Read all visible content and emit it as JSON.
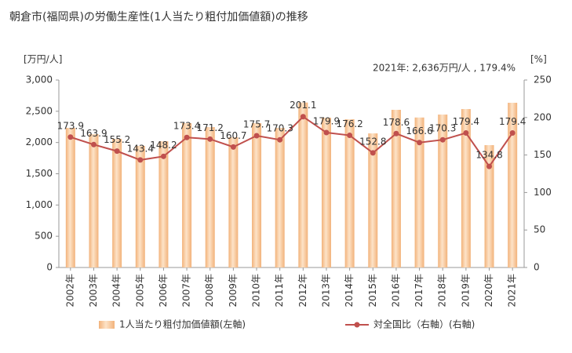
{
  "chart_data": {
    "type": "bar_line",
    "title": "朝倉市(福岡県)の労働生産性(1人当たり粗付加価値額)の推移",
    "y_unit": "[万円/人]",
    "y2_unit": "[%]",
    "annotation": "2021年: 2,636万円/人 , 179.4%",
    "categories": [
      "2002年",
      "2003年",
      "2004年",
      "2005年",
      "2006年",
      "2007年",
      "2008年",
      "2009年",
      "2010年",
      "2011年",
      "2012年",
      "2013年",
      "2014年",
      "2015年",
      "2016年",
      "2017年",
      "2018年",
      "2019年",
      "2020年",
      "2021年"
    ],
    "series": [
      {
        "name": "1人当たり粗付加価値額(左軸)",
        "type": "bar",
        "color": "#f2b27a",
        "values": [
          2234,
          2134,
          2058,
          1946,
          2020,
          2310,
          2247,
          2084,
          2310,
          2234,
          2640,
          2397,
          2372,
          2146,
          2523,
          2400,
          2447,
          2535,
          1958,
          2636
        ]
      },
      {
        "name": "対全国比（右軸）(右軸)",
        "type": "line",
        "axis": "y2",
        "color": "#c0504d",
        "values": [
          173.9,
          163.9,
          155.2,
          143.4,
          148.2,
          173.4,
          171.2,
          160.7,
          175.7,
          170.3,
          201.1,
          179.9,
          176.2,
          152.8,
          178.6,
          166.6,
          170.3,
          179.4,
          134.8,
          179.4
        ]
      }
    ],
    "ylim": [
      0,
      3000
    ],
    "yticks": [
      0,
      500,
      {
        "value": 1000,
        "label": "1,000"
      },
      {
        "value": 1500,
        "label": "1,500"
      },
      {
        "value": 2000,
        "label": "2,000"
      },
      {
        "value": 2500,
        "label": "2,500"
      },
      {
        "value": 3000,
        "label": "3,000"
      }
    ],
    "y2lim": [
      0,
      250
    ],
    "y2ticks": [
      0,
      50,
      100,
      150,
      200,
      250
    ],
    "grid": false
  }
}
